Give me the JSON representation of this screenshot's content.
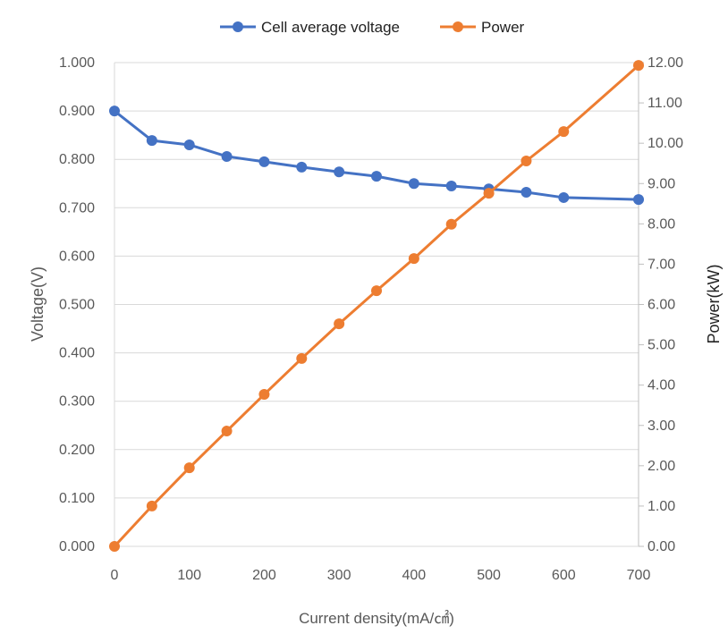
{
  "chart_data": {
    "type": "line",
    "title": "",
    "xlabel": "Current density(mA/㎠)",
    "ylabel": "Voltage(V)",
    "y2label": "Power(kW)",
    "xlim": [
      0,
      700
    ],
    "ylim": [
      0,
      1.0
    ],
    "y2lim": [
      0,
      12.0
    ],
    "xticks": [
      "0",
      "100",
      "200",
      "300",
      "400",
      "500",
      "600",
      "700"
    ],
    "yticks": [
      "0.000",
      "0.100",
      "0.200",
      "0.300",
      "0.400",
      "0.500",
      "0.600",
      "0.700",
      "0.800",
      "0.900",
      "1.000"
    ],
    "y2ticks": [
      "0.00",
      "1.00",
      "2.00",
      "3.00",
      "4.00",
      "5.00",
      "6.00",
      "7.00",
      "8.00",
      "9.00",
      "10.00",
      "11.00",
      "12.00"
    ],
    "grid": true,
    "legend_position": "top",
    "x": [
      0,
      50,
      100,
      150,
      200,
      250,
      300,
      350,
      400,
      450,
      500,
      550,
      600,
      700
    ],
    "series": [
      {
        "name": "Cell average voltage",
        "axis": "left",
        "color": "#4472C4",
        "values": [
          0.9,
          0.839,
          0.83,
          0.806,
          0.795,
          0.784,
          0.774,
          0.765,
          0.75,
          0.745,
          0.739,
          0.732,
          0.721,
          0.717
        ]
      },
      {
        "name": "Power",
        "axis": "right",
        "color": "#ED7D31",
        "values": [
          0.0,
          1.0,
          1.95,
          2.86,
          3.77,
          4.66,
          5.52,
          6.34,
          7.14,
          7.99,
          8.76,
          9.56,
          10.29,
          11.93
        ]
      }
    ]
  }
}
